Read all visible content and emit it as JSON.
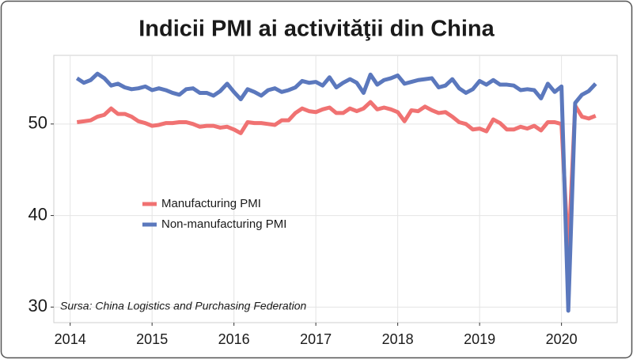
{
  "chart_data": {
    "type": "line",
    "title": "Indicii PMI ai activităţii din China",
    "source": "Sursa: China Logistics and Purchasing Federation",
    "x": [
      2014.083,
      2014.167,
      2014.25,
      2014.333,
      2014.417,
      2014.5,
      2014.583,
      2014.667,
      2014.75,
      2014.833,
      2014.917,
      2015.0,
      2015.083,
      2015.167,
      2015.25,
      2015.333,
      2015.417,
      2015.5,
      2015.583,
      2015.667,
      2015.75,
      2015.833,
      2015.917,
      2016.0,
      2016.083,
      2016.167,
      2016.25,
      2016.333,
      2016.417,
      2016.5,
      2016.583,
      2016.667,
      2016.75,
      2016.833,
      2016.917,
      2017.0,
      2017.083,
      2017.167,
      2017.25,
      2017.333,
      2017.417,
      2017.5,
      2017.583,
      2017.667,
      2017.75,
      2017.833,
      2017.917,
      2018.0,
      2018.083,
      2018.167,
      2018.25,
      2018.333,
      2018.417,
      2018.5,
      2018.583,
      2018.667,
      2018.75,
      2018.833,
      2018.917,
      2019.0,
      2019.083,
      2019.167,
      2019.25,
      2019.333,
      2019.417,
      2019.5,
      2019.583,
      2019.667,
      2019.75,
      2019.833,
      2019.917,
      2020.0,
      2020.083,
      2020.167,
      2020.25,
      2020.333,
      2020.417
    ],
    "series": [
      {
        "name": "Manufacturing PMI",
        "color": "#f07272",
        "values": [
          50.2,
          50.3,
          50.4,
          50.8,
          51.0,
          51.7,
          51.1,
          51.1,
          50.8,
          50.3,
          50.1,
          49.8,
          49.9,
          50.1,
          50.1,
          50.2,
          50.2,
          50.0,
          49.7,
          49.8,
          49.8,
          49.6,
          49.7,
          49.4,
          49.0,
          50.2,
          50.1,
          50.1,
          50.0,
          49.9,
          50.4,
          50.4,
          51.2,
          51.7,
          51.4,
          51.3,
          51.6,
          51.8,
          51.2,
          51.2,
          51.7,
          51.4,
          51.7,
          52.4,
          51.6,
          51.8,
          51.6,
          51.3,
          50.3,
          51.5,
          51.4,
          51.9,
          51.5,
          51.2,
          51.3,
          50.8,
          50.2,
          50.0,
          49.4,
          49.5,
          49.2,
          50.5,
          50.1,
          49.4,
          49.4,
          49.7,
          49.5,
          49.8,
          49.3,
          50.2,
          50.2,
          50.0,
          35.7,
          52.0,
          50.8,
          50.6,
          50.9
        ]
      },
      {
        "name": "Non-manufacturing PMI",
        "color": "#5b78bd",
        "values": [
          55.0,
          54.5,
          54.8,
          55.5,
          55.0,
          54.2,
          54.4,
          54.0,
          53.8,
          53.9,
          54.1,
          53.7,
          53.9,
          53.7,
          53.4,
          53.2,
          53.8,
          53.9,
          53.4,
          53.4,
          53.1,
          53.6,
          54.4,
          53.5,
          52.7,
          53.8,
          53.5,
          53.1,
          53.7,
          53.9,
          53.5,
          53.7,
          54.0,
          54.7,
          54.5,
          54.6,
          54.2,
          55.1,
          54.0,
          54.5,
          54.9,
          54.5,
          53.4,
          55.4,
          54.3,
          54.8,
          55.0,
          55.3,
          54.4,
          54.6,
          54.8,
          54.9,
          55.0,
          54.0,
          54.2,
          54.9,
          53.9,
          53.4,
          53.8,
          54.7,
          54.3,
          54.8,
          54.3,
          54.3,
          54.2,
          53.7,
          53.8,
          53.7,
          52.8,
          54.4,
          53.5,
          54.1,
          29.6,
          52.3,
          53.2,
          53.6,
          54.4
        ]
      }
    ],
    "xlim": [
      2013.8,
      2020.68
    ],
    "xticks": [
      2014,
      2015,
      2016,
      2017,
      2018,
      2019,
      2020
    ],
    "ylim": [
      28.3,
      57.5
    ],
    "yticks": [
      30,
      40,
      50
    ],
    "grid": true,
    "legend": "center-left"
  }
}
